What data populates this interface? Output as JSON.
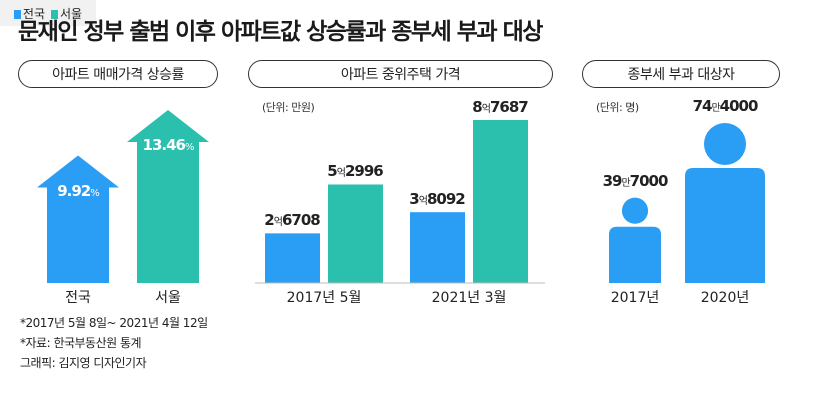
{
  "title": "문재인 정부 출범 이후 아파트값 상승률과 종부세 부과 대상",
  "legend": {
    "national": "전국",
    "seoul": "서울"
  },
  "colors": {
    "national": "#2a9df4",
    "seoul": "#2bbfae"
  },
  "chart_data": [
    {
      "type": "bar",
      "title": "아파트 매매가격 상승률",
      "categories": [
        "전국",
        "서울"
      ],
      "values": [
        9.92,
        13.46
      ],
      "labels": [
        "9.92%",
        "13.46%"
      ],
      "unit": "%"
    },
    {
      "type": "bar",
      "title": "아파트 중위주택 가격",
      "unit_label": "(단위: 만원)",
      "categories": [
        "2017년 5월",
        "2021년 3월"
      ],
      "series": [
        {
          "name": "전국",
          "values": [
            26708,
            38092
          ],
          "labels": [
            [
              "2",
              "억",
              "6708"
            ],
            [
              "3",
              "억",
              "8092"
            ]
          ]
        },
        {
          "name": "서울",
          "values": [
            52996,
            87687
          ],
          "labels": [
            [
              "5",
              "억",
              "2996"
            ],
            [
              "8",
              "억",
              "7687"
            ]
          ]
        }
      ]
    },
    {
      "type": "bar",
      "title": "종부세 부과 대상자",
      "unit_label": "(단위: 명)",
      "categories": [
        "2017년",
        "2020년"
      ],
      "values": [
        397000,
        744000
      ],
      "labels": [
        [
          "39",
          "만",
          "7000"
        ],
        [
          "74",
          "만",
          "4000"
        ]
      ]
    }
  ],
  "footnotes": [
    "*2017년 5월 8일~ 2021년 4월 12일",
    "*자료: 한국부동산원 통계",
    "그래픽: 김지영 디자인기자"
  ]
}
